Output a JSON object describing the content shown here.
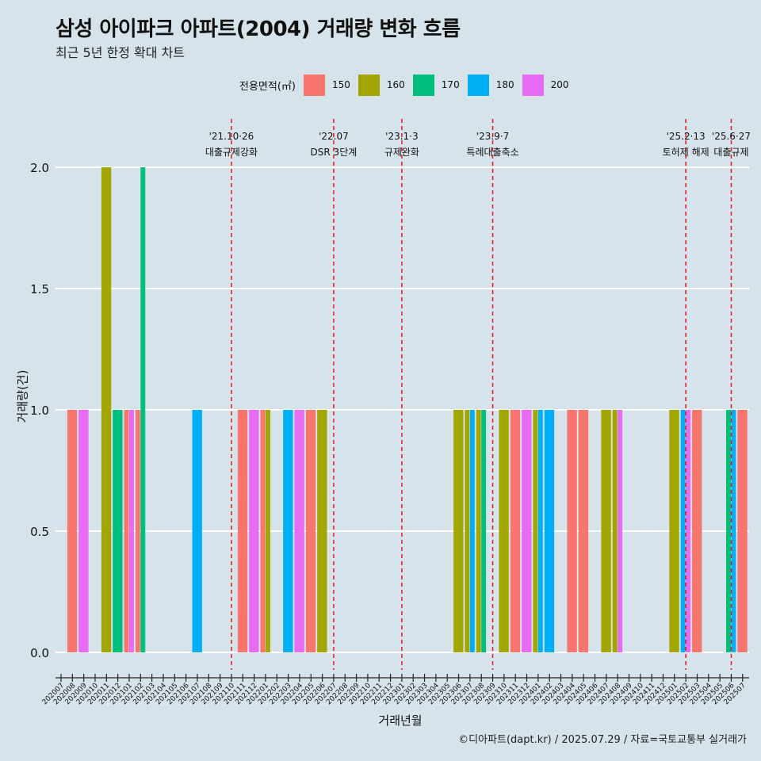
{
  "title": "삼성 아이파크 아파트(2004) 거래량 변화 흐름",
  "subtitle": "최근 5년 한정 확대 차트",
  "caption": "©디아파트(dapt.kr) / 2025.07.29 / 자료=국토교통부 실거래가",
  "legend": {
    "title": "전용면적(㎡)",
    "items": [
      {
        "label": "150",
        "color": "#f8766d"
      },
      {
        "label": "160",
        "color": "#a3a500"
      },
      {
        "label": "170",
        "color": "#00bf7d"
      },
      {
        "label": "180",
        "color": "#00b0f6"
      },
      {
        "label": "200",
        "color": "#e76bf3"
      }
    ]
  },
  "chart_data": {
    "type": "bar",
    "xlabel": "거래년월",
    "ylabel": "거래량(건)",
    "ylim": [
      0,
      2
    ],
    "yticks": [
      "0.0",
      "0.5",
      "1.0",
      "1.5",
      "2.0"
    ],
    "categories": [
      "202007",
      "202008",
      "202009",
      "202010",
      "202011",
      "202012",
      "202101",
      "202102",
      "202103",
      "202104",
      "202105",
      "202106",
      "202107",
      "202108",
      "202109",
      "202110",
      "202111",
      "202112",
      "202201",
      "202202",
      "202203",
      "202204",
      "202205",
      "202206",
      "202207",
      "202208",
      "202209",
      "202210",
      "202211",
      "202212",
      "202301",
      "202302",
      "202303",
      "202304",
      "202305",
      "202306",
      "202307",
      "202308",
      "202309",
      "202310",
      "202311",
      "202312",
      "202401",
      "202402",
      "202403",
      "202404",
      "202405",
      "202406",
      "202407",
      "202408",
      "202409",
      "202410",
      "202411",
      "202412",
      "202501",
      "202502",
      "202503",
      "202504",
      "202505",
      "202506",
      "202507"
    ],
    "bars": [
      {
        "month": "202008",
        "area": "150",
        "value": 1
      },
      {
        "month": "202009",
        "area": "200",
        "value": 1
      },
      {
        "month": "202011",
        "area": "160",
        "value": 2
      },
      {
        "month": "202012",
        "area": "170",
        "value": 1
      },
      {
        "month": "202101",
        "area": "150",
        "value": 1
      },
      {
        "month": "202101",
        "area": "200",
        "value": 1
      },
      {
        "month": "202102",
        "area": "150",
        "value": 1
      },
      {
        "month": "202102",
        "area": "170",
        "value": 2
      },
      {
        "month": "202107",
        "area": "180",
        "value": 1
      },
      {
        "month": "202111",
        "area": "150",
        "value": 1
      },
      {
        "month": "202112",
        "area": "200",
        "value": 1
      },
      {
        "month": "202201",
        "area": "150",
        "value": 1
      },
      {
        "month": "202201",
        "area": "160",
        "value": 1
      },
      {
        "month": "202203",
        "area": "180",
        "value": 1
      },
      {
        "month": "202204",
        "area": "200",
        "value": 1
      },
      {
        "month": "202205",
        "area": "150",
        "value": 1
      },
      {
        "month": "202206",
        "area": "160",
        "value": 1
      },
      {
        "month": "202306",
        "area": "160",
        "value": 1
      },
      {
        "month": "202307",
        "area": "160",
        "value": 1
      },
      {
        "month": "202307",
        "area": "180",
        "value": 1
      },
      {
        "month": "202308",
        "area": "160",
        "value": 1
      },
      {
        "month": "202308",
        "area": "170",
        "value": 1
      },
      {
        "month": "202310",
        "area": "160",
        "value": 1
      },
      {
        "month": "202311",
        "area": "150",
        "value": 1
      },
      {
        "month": "202312",
        "area": "200",
        "value": 1
      },
      {
        "month": "202401",
        "area": "160",
        "value": 1
      },
      {
        "month": "202401",
        "area": "180",
        "value": 1
      },
      {
        "month": "202402",
        "area": "180",
        "value": 1
      },
      {
        "month": "202404",
        "area": "150",
        "value": 1
      },
      {
        "month": "202405",
        "area": "150",
        "value": 1
      },
      {
        "month": "202407",
        "area": "160",
        "value": 1
      },
      {
        "month": "202408",
        "area": "160",
        "value": 1
      },
      {
        "month": "202408",
        "area": "200",
        "value": 1
      },
      {
        "month": "202501",
        "area": "160",
        "value": 1
      },
      {
        "month": "202502",
        "area": "180",
        "value": 1
      },
      {
        "month": "202502",
        "area": "200",
        "value": 1
      },
      {
        "month": "202503",
        "area": "150",
        "value": 1
      },
      {
        "month": "202506",
        "area": "170",
        "value": 1
      },
      {
        "month": "202506",
        "area": "180",
        "value": 1
      },
      {
        "month": "202507",
        "area": "150",
        "value": 1
      }
    ],
    "events": [
      {
        "month": "202110",
        "date": "'21.10·26",
        "label": "대출규제강화"
      },
      {
        "month": "202207",
        "date": "'22.07",
        "label": "DSR 3단계"
      },
      {
        "month": "202301",
        "date": "'23.1·3",
        "label": "규제완화"
      },
      {
        "month": "202309",
        "date": "'23.9·7",
        "label": "특례대출축소"
      },
      {
        "month": "202502",
        "date": "'25.2·13",
        "label": "토허제 해제"
      },
      {
        "month": "202506",
        "date": "'25.6·27",
        "label": "대출규제"
      }
    ],
    "grid": true,
    "legend_position": "top"
  }
}
